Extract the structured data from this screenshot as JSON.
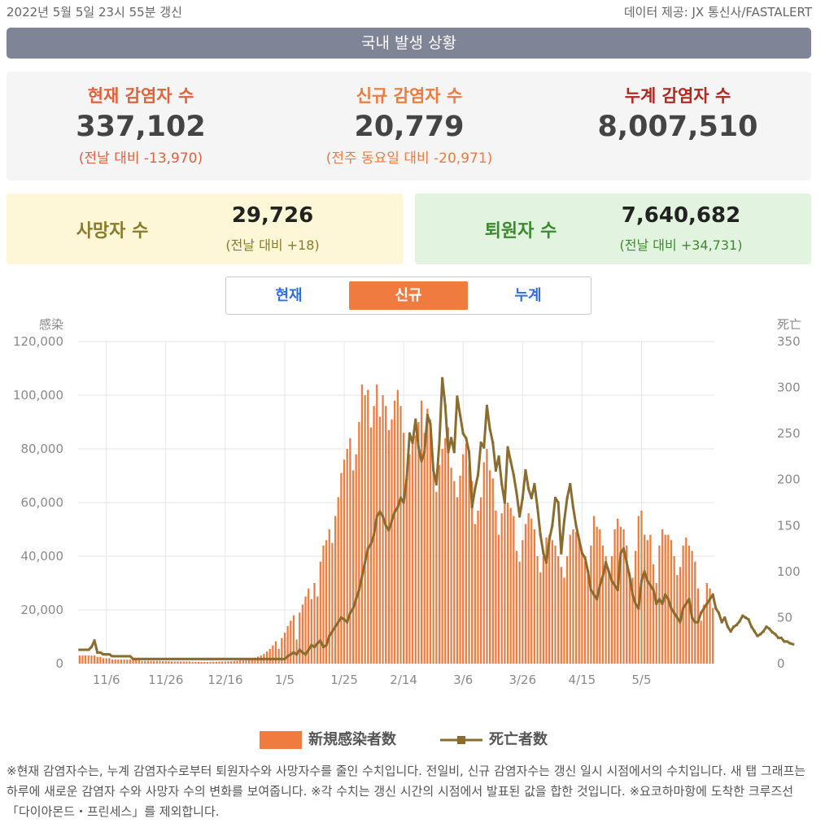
{
  "header": {
    "updated": "2022년 5월 5일 23시 55분 갱신",
    "source": "데이터 제공: JX 통신사/FASTALERT",
    "title": "국내 발생 상황"
  },
  "stats": {
    "current": {
      "label": "현재 감염자 수",
      "value": "337,102",
      "sub": "(전날 대비 -13,970)"
    },
    "new": {
      "label": "신규 감염자 수",
      "value": "20,779",
      "sub": "(전주 동요일 대비 -20,971)"
    },
    "total": {
      "label": "누계 감염자 수",
      "value": "8,007,510"
    }
  },
  "deaths_card": {
    "label": "사망자 수",
    "value": "29,726",
    "sub": "(전날 대비 +18)"
  },
  "recovered_card": {
    "label": "퇴원자 수",
    "value": "7,640,682",
    "sub": "(전날 대비 +34,731)"
  },
  "tabs": [
    "현재",
    "신규",
    "누계"
  ],
  "active_tab": "신규",
  "colors": {
    "bars": "#ef7b3e",
    "deaths_line": "#8a6d2e",
    "title_bar": "#7f8496"
  },
  "chart_data": {
    "type": "bar",
    "x_start": "2021-10-28",
    "xticks": [
      "11/6",
      "11/26",
      "12/16",
      "1/5",
      "1/25",
      "2/14",
      "3/6",
      "3/26",
      "4/15",
      "5/5"
    ],
    "y_left_label": "感染",
    "y_right_label": "死亡",
    "y_left_ticks": [
      "0",
      "20,000",
      "40,000",
      "60,000",
      "80,000",
      "100,000",
      "120,000"
    ],
    "y_right_ticks": [
      "0",
      "50",
      "100",
      "150",
      "200",
      "250",
      "300",
      "350"
    ],
    "ylim_left": [
      0,
      120000
    ],
    "ylim_right": [
      0,
      350
    ],
    "series": [
      {
        "name": "新規感染者数",
        "axis": "left",
        "type": "bar",
        "values": [
          3000,
          3000,
          3000,
          3000,
          3000,
          3000,
          2500,
          2500,
          2000,
          2000,
          2000,
          1500,
          1500,
          1500,
          1500,
          1500,
          1500,
          1500,
          1200,
          1200,
          1200,
          1000,
          1000,
          1000,
          1000,
          1000,
          1000,
          1000,
          900,
          900,
          900,
          800,
          800,
          800,
          800,
          800,
          800,
          800,
          700,
          700,
          700,
          600,
          600,
          600,
          700,
          700,
          700,
          800,
          800,
          800,
          900,
          900,
          1000,
          1000,
          1200,
          1200,
          1500,
          1600,
          1800,
          2200,
          2600,
          3000,
          3600,
          4500,
          5500,
          6800,
          8300,
          5500,
          9500,
          11500,
          14000,
          16000,
          18000,
          9000,
          19000,
          22000,
          25000,
          28000,
          24000,
          30000,
          25000,
          38000,
          44000,
          46000,
          50000,
          45000,
          55000,
          62000,
          71000,
          76000,
          80000,
          84000,
          72000,
          78000,
          90000,
          104000,
          100000,
          102000,
          88000,
          96000,
          104000,
          92000,
          100000,
          96000,
          87000,
          91000,
          98000,
          102000,
          96000,
          86000,
          70000,
          78000,
          82000,
          85000,
          90000,
          98000,
          86000,
          95000,
          91000,
          72000,
          64000,
          74000,
          80000,
          84000,
          88000,
          73000,
          68000,
          62000,
          70000,
          78000,
          82000,
          74000,
          68000,
          52000,
          57000,
          62000,
          75000,
          80000,
          72000,
          69000,
          57000,
          48000,
          56000,
          64000,
          60000,
          58000,
          55000,
          42000,
          38000,
          46000,
          52000,
          56000,
          54000,
          50000,
          40000,
          34000,
          40000,
          47000,
          48000,
          46000,
          44000,
          40000,
          36000,
          32000,
          40000,
          48000,
          50000,
          49000,
          46000,
          41000,
          38000,
          35000,
          44000,
          55000,
          51000,
          50000,
          44000,
          40000,
          34000,
          40000,
          50000,
          54000,
          51000,
          50000,
          44000,
          34000,
          32000,
          42000,
          55000,
          57000,
          48000,
          46000,
          48000,
          37000,
          30000,
          44000,
          50000,
          48000,
          48000,
          46000,
          40000,
          33000,
          36000,
          44000,
          47000,
          44000,
          42000,
          38000,
          28000,
          16000,
          22000,
          30000,
          28000,
          20779
        ]
      },
      {
        "name": "死亡者数",
        "axis": "right",
        "type": "line",
        "values": [
          15,
          15,
          15,
          15,
          18,
          25,
          12,
          12,
          10,
          10,
          10,
          8,
          8,
          8,
          8,
          8,
          8,
          8,
          5,
          5,
          5,
          5,
          5,
          5,
          5,
          5,
          5,
          5,
          5,
          5,
          5,
          5,
          5,
          5,
          5,
          5,
          5,
          5,
          5,
          5,
          5,
          5,
          5,
          5,
          5,
          5,
          5,
          5,
          5,
          5,
          5,
          5,
          5,
          5,
          5,
          5,
          5,
          5,
          5,
          5,
          5,
          5,
          5,
          5,
          5,
          5,
          5,
          5,
          5,
          5,
          8,
          10,
          12,
          10,
          15,
          12,
          10,
          15,
          20,
          18,
          22,
          25,
          18,
          20,
          30,
          35,
          40,
          45,
          50,
          48,
          45,
          55,
          60,
          70,
          80,
          95,
          110,
          125,
          130,
          140,
          160,
          165,
          160,
          150,
          145,
          155,
          165,
          170,
          180,
          175,
          200,
          250,
          240,
          265,
          235,
          220,
          230,
          270,
          260,
          210,
          195,
          240,
          310,
          280,
          230,
          245,
          230,
          290,
          270,
          250,
          245,
          230,
          170,
          190,
          205,
          240,
          235,
          280,
          255,
          240,
          210,
          225,
          195,
          175,
          235,
          220,
          205,
          185,
          160,
          180,
          210,
          190,
          180,
          195,
          170,
          140,
          120,
          110,
          135,
          150,
          180,
          175,
          120,
          155,
          180,
          195,
          170,
          150,
          135,
          120,
          115,
          100,
          80,
          75,
          70,
          85,
          95,
          110,
          100,
          90,
          85,
          80,
          120,
          125,
          110,
          95,
          75,
          65,
          60,
          90,
          100,
          90,
          85,
          80,
          65,
          70,
          65,
          75,
          70,
          60,
          55,
          50,
          45,
          60,
          65,
          70,
          50,
          45,
          45,
          55,
          60,
          65,
          70,
          75,
          60,
          55,
          45,
          50,
          40,
          35,
          40,
          42,
          46,
          52,
          50,
          48,
          40,
          35,
          30,
          32,
          35,
          40,
          38,
          34,
          32,
          28,
          28,
          24,
          24,
          22,
          21
        ]
      }
    ]
  },
  "legend": [
    {
      "label": "新規感染者数"
    },
    {
      "label": "死亡者数"
    }
  ],
  "footnote": "※현재 감염자수는, 누계 감염자수로부터 퇴원자수와 사망자수를 줄인 수치입니다. 전일비, 신규 감염자수는 갱신 일시 시점에서의 수치입니다. 새 탭 그래프는 하루에 새로운 감염자 수와 사망자 수의 변화를 보여줍니다. ※각 수치는 갱신 시간의 시점에서 발표된 값을 합한 것입니다. ※요코하마항에 도착한 크루즈선 「다이아몬드・프린세스」를 제외합니다."
}
